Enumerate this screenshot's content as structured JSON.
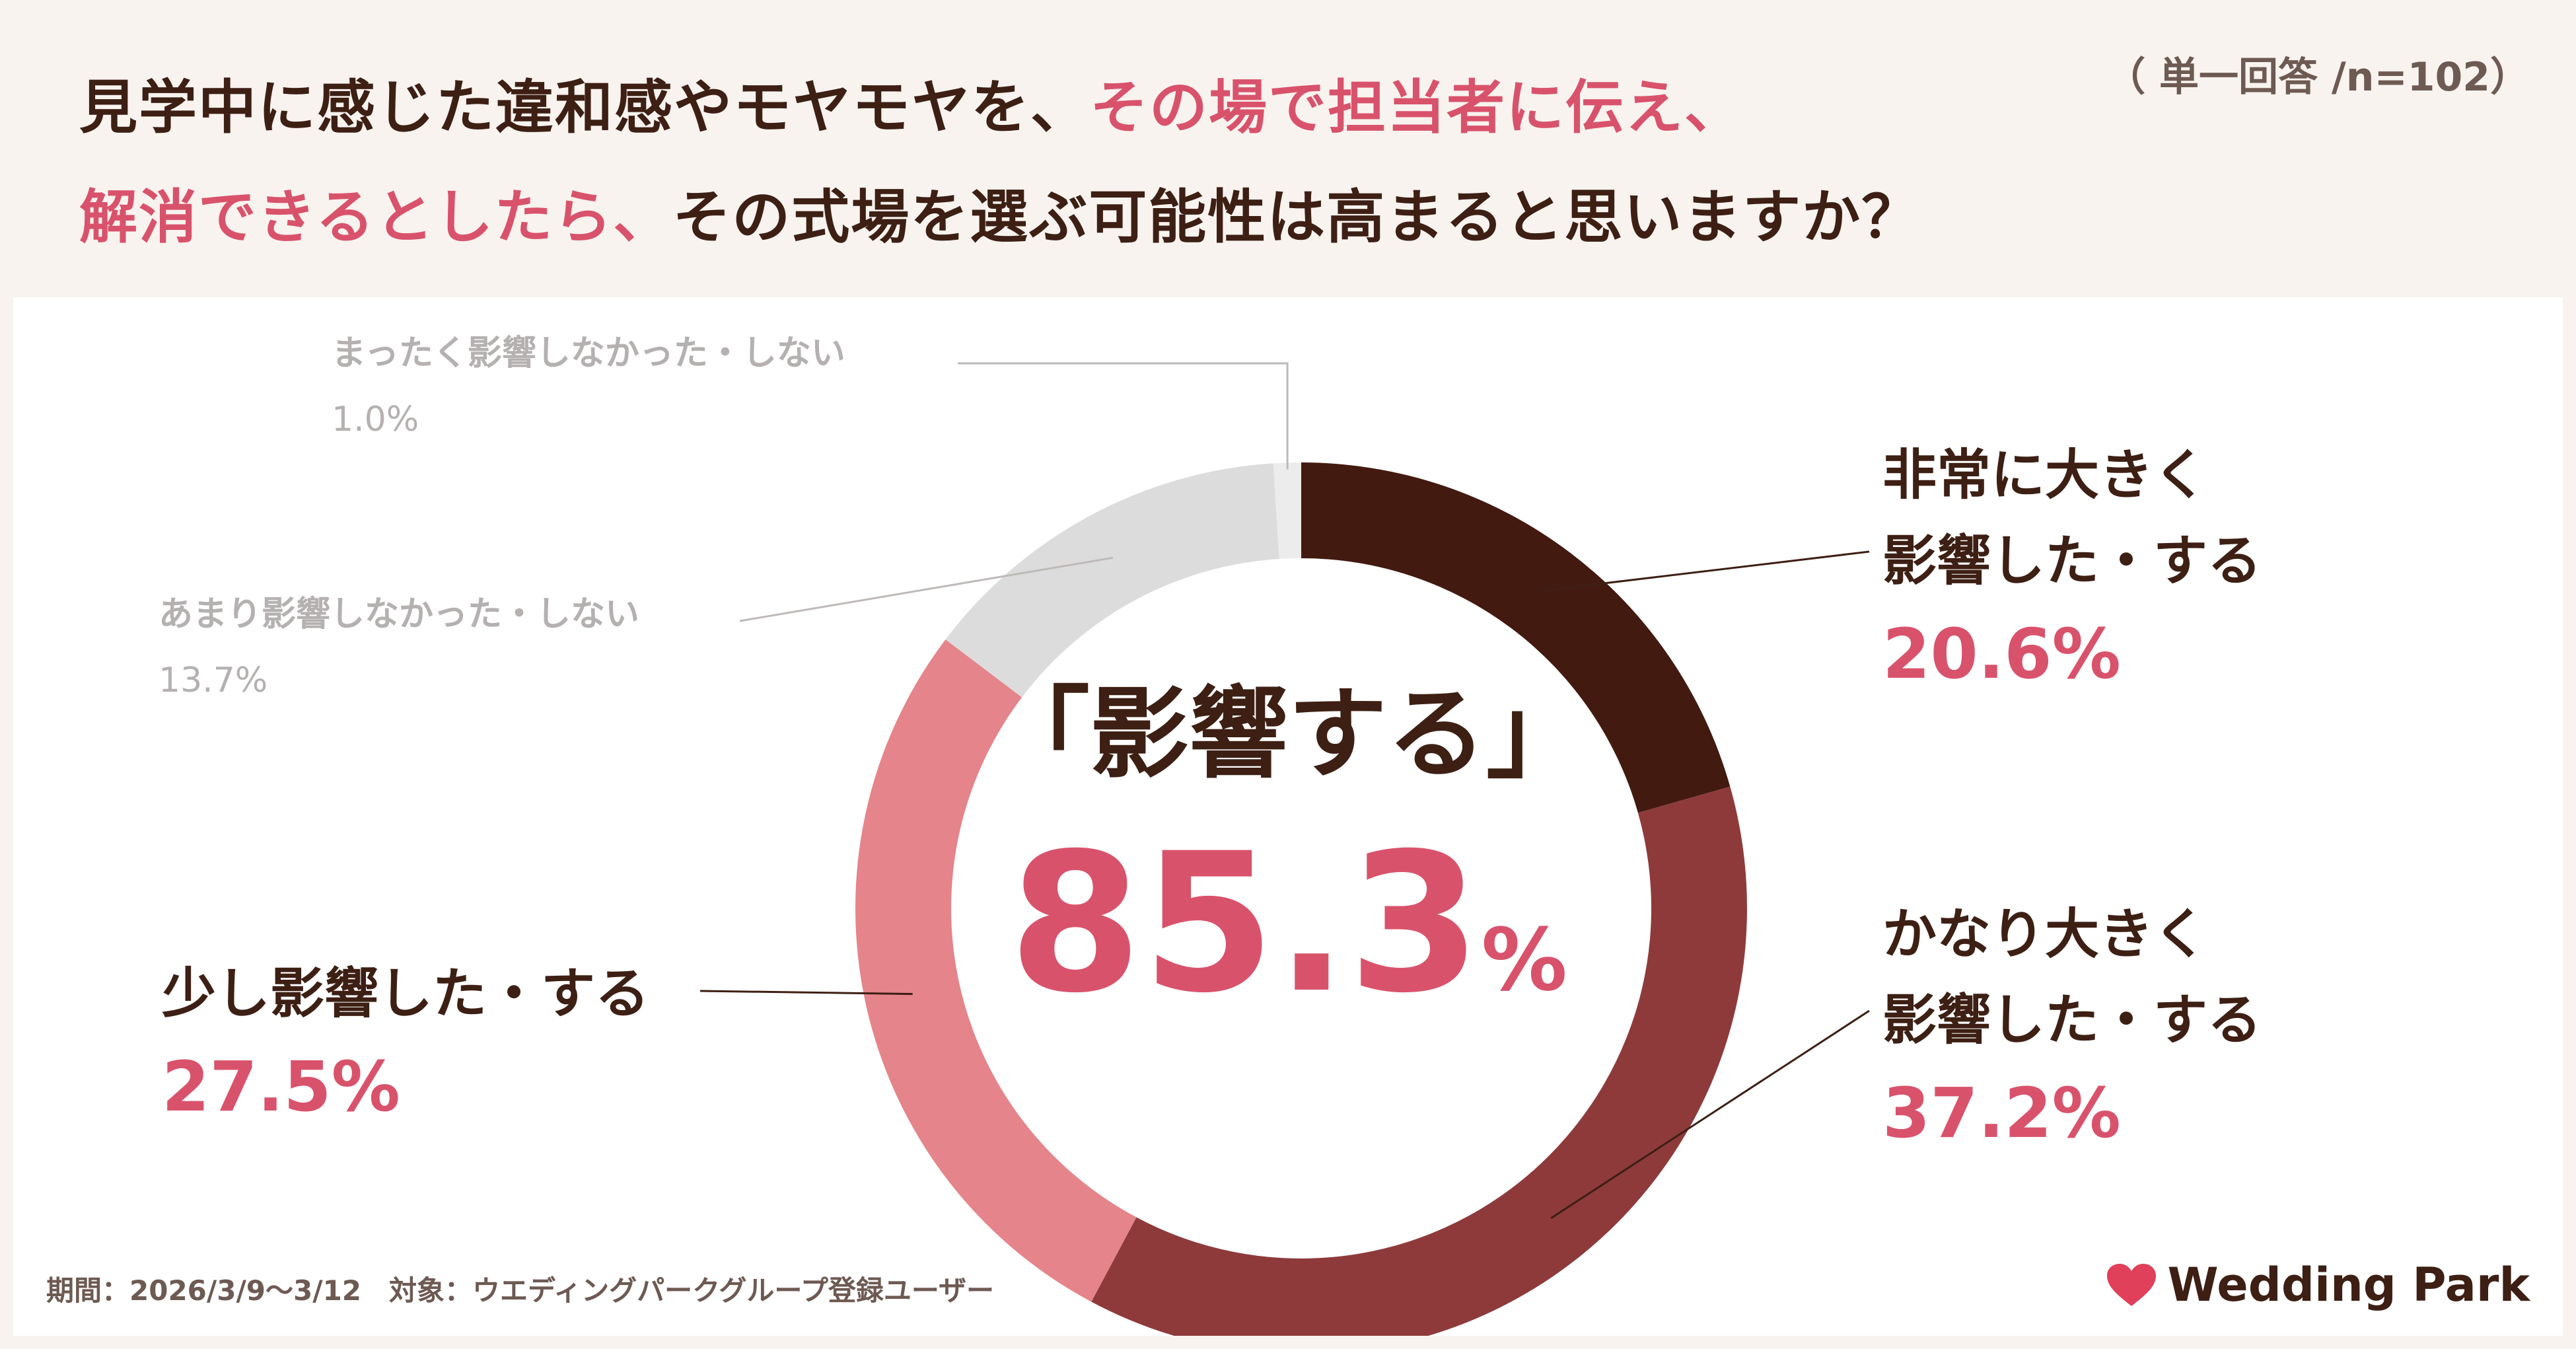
{
  "title": {
    "line1_a": "見学中に感じた違和感やモヤモヤを、",
    "line1_b": "その場で担当者に伝え、",
    "line2_a": "解消できるとしたら、",
    "line2_b": "その式場を選ぶ可能性は高まると思いますか？",
    "note": "（ 単一回答 /n=102）"
  },
  "center": {
    "label": "「影響する」",
    "value": "85.3",
    "unit": "%"
  },
  "labels": {
    "very_large": {
      "line1": "非常に大きく",
      "line2": "影響した・する",
      "pct": "20.6%"
    },
    "fairly_large": {
      "line1": "かなり大きく",
      "line2": "影響した・する",
      "pct": "37.2%"
    },
    "slight": {
      "line1": "少し影響した・する",
      "pct": "27.5%"
    },
    "not_much": {
      "line1": "あまり影響しなかった・しない",
      "pct": "13.7%"
    },
    "not_at_all": {
      "line1": "まったく影響しなかった・しない",
      "pct": "1.0%"
    }
  },
  "footer": "期間：2026/3/9〜3/12　対象：ウエディングパークグループ登録ユーザー",
  "brand": {
    "name": "Wedding Park",
    "icon": "heart-icon",
    "icon_color": "#e0405a"
  },
  "chart_data": {
    "type": "pie",
    "style": "donut",
    "categories": [
      "非常に大きく影響した・する",
      "かなり大きく影響した・する",
      "少し影響した・する",
      "あまり影響しなかった・しない",
      "まったく影響しなかった・しない"
    ],
    "values": [
      20.6,
      37.2,
      27.5,
      13.7,
      1.0
    ],
    "colors": [
      "#431a10",
      "#8e3a3b",
      "#e5848a",
      "#dcdcdc",
      "#ececec"
    ],
    "unit": "%"
  }
}
